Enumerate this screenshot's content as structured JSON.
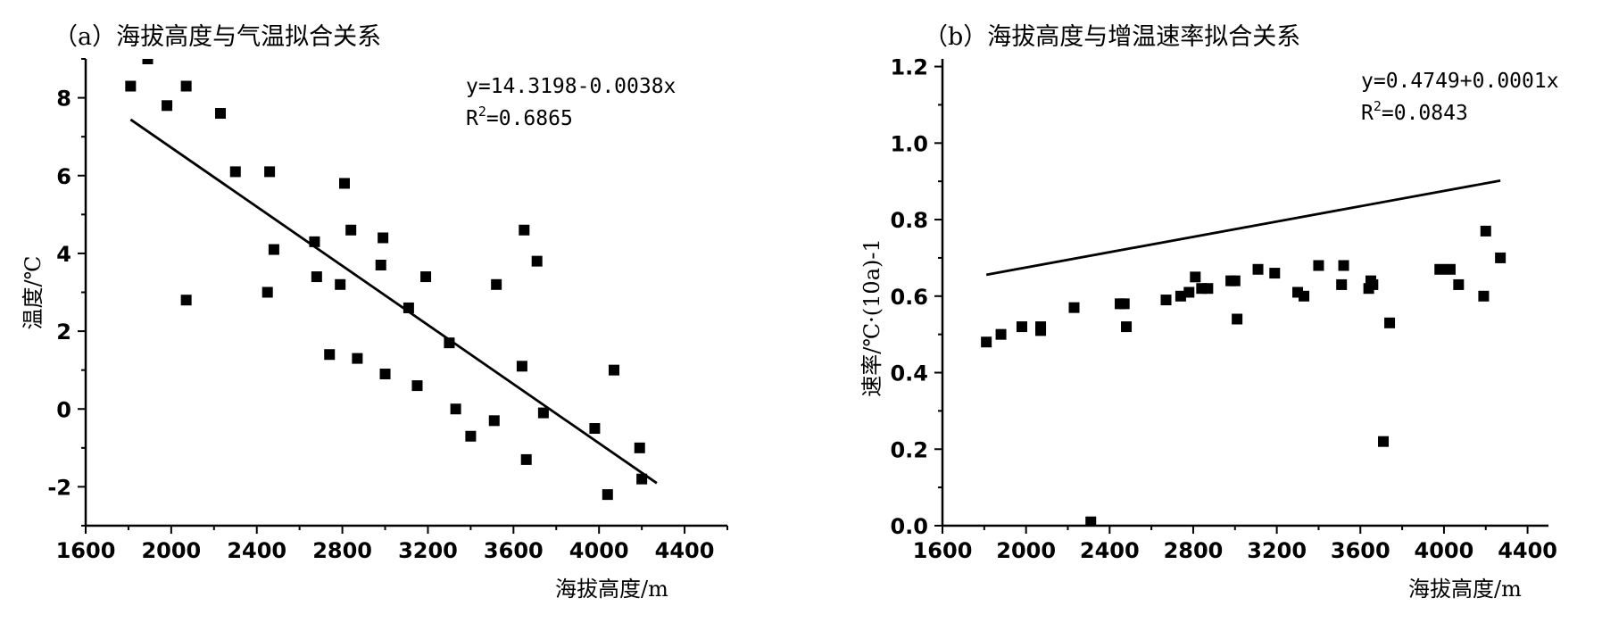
{
  "chart_data": [
    {
      "type": "scatter",
      "title": "（a）海拔高度与气温拟合关系",
      "xlabel": "海拔高度/m",
      "ylabel": "温度/℃",
      "xlim": [
        1600,
        4600
      ],
      "ylim": [
        -3,
        9
      ],
      "xticks": [
        1600,
        2000,
        2400,
        2800,
        3200,
        3600,
        4000,
        4400
      ],
      "yticks": [
        -2,
        0,
        2,
        4,
        6,
        8
      ],
      "equation": "y=14.3198-0.0038x",
      "r2_prefix": "R",
      "r2_sup": "2",
      "r2_value": "=0.6865",
      "fit": {
        "intercept": 14.3198,
        "slope": -0.0038,
        "x_range": [
          1810,
          4270
        ]
      },
      "points": [
        [
          1810,
          8.3
        ],
        [
          1890,
          9.0
        ],
        [
          1980,
          7.8
        ],
        [
          2070,
          8.3
        ],
        [
          2070,
          2.8
        ],
        [
          2230,
          7.6
        ],
        [
          2300,
          6.1
        ],
        [
          2450,
          3.0
        ],
        [
          2460,
          6.1
        ],
        [
          2480,
          4.1
        ],
        [
          2670,
          4.3
        ],
        [
          2680,
          3.4
        ],
        [
          2740,
          1.4
        ],
        [
          2790,
          3.2
        ],
        [
          2810,
          5.8
        ],
        [
          2840,
          4.6
        ],
        [
          2870,
          1.3
        ],
        [
          2980,
          3.7
        ],
        [
          2990,
          4.4
        ],
        [
          3000,
          0.9
        ],
        [
          3110,
          2.6
        ],
        [
          3150,
          0.6
        ],
        [
          3190,
          3.4
        ],
        [
          3300,
          1.7
        ],
        [
          3330,
          0.0
        ],
        [
          3400,
          -0.7
        ],
        [
          3510,
          -0.3
        ],
        [
          3520,
          3.2
        ],
        [
          3640,
          1.1
        ],
        [
          3650,
          4.6
        ],
        [
          3660,
          -1.3
        ],
        [
          3710,
          3.8
        ],
        [
          3740,
          -0.1
        ],
        [
          3980,
          -0.5
        ],
        [
          4040,
          -2.2
        ],
        [
          4070,
          1.0
        ],
        [
          4190,
          -1.0
        ],
        [
          4200,
          -1.8
        ]
      ]
    },
    {
      "type": "scatter",
      "title": "（b）海拔高度与增温速率拟合关系",
      "xlabel": "海拔高度/m",
      "ylabel": "速率/℃·(10a)-1",
      "xlim": [
        1600,
        4500
      ],
      "ylim": [
        0.0,
        1.22
      ],
      "xticks": [
        1600,
        2000,
        2400,
        2800,
        3200,
        3600,
        4000,
        4400
      ],
      "yticks": [
        0.0,
        0.2,
        0.4,
        0.6,
        0.8,
        1.0,
        1.2
      ],
      "equation": "y=0.4749+0.0001x",
      "r2_prefix": "R",
      "r2_sup": "2",
      "r2_value": "=0.0843",
      "fit": {
        "intercept": 0.4749,
        "slope": 0.0001,
        "x_range": [
          1810,
          4270
        ]
      },
      "points": [
        [
          1810,
          0.48
        ],
        [
          1880,
          0.5
        ],
        [
          1980,
          0.52
        ],
        [
          2070,
          0.51
        ],
        [
          2070,
          0.52
        ],
        [
          2230,
          0.57
        ],
        [
          2310,
          0.01
        ],
        [
          2450,
          0.58
        ],
        [
          2470,
          0.58
        ],
        [
          2480,
          0.52
        ],
        [
          2670,
          0.59
        ],
        [
          2740,
          0.6
        ],
        [
          2780,
          0.61
        ],
        [
          2810,
          0.65
        ],
        [
          2840,
          0.62
        ],
        [
          2870,
          0.62
        ],
        [
          2980,
          0.64
        ],
        [
          3000,
          0.64
        ],
        [
          3010,
          0.54
        ],
        [
          3110,
          0.67
        ],
        [
          3190,
          0.66
        ],
        [
          3300,
          0.61
        ],
        [
          3330,
          0.6
        ],
        [
          3400,
          0.68
        ],
        [
          3510,
          0.63
        ],
        [
          3520,
          0.68
        ],
        [
          3640,
          0.62
        ],
        [
          3650,
          0.64
        ],
        [
          3660,
          0.63
        ],
        [
          3710,
          0.22
        ],
        [
          3740,
          0.53
        ],
        [
          3980,
          0.67
        ],
        [
          4030,
          0.67
        ],
        [
          4070,
          0.63
        ],
        [
          4190,
          0.6
        ],
        [
          4200,
          0.77
        ],
        [
          4270,
          0.7
        ]
      ]
    }
  ]
}
